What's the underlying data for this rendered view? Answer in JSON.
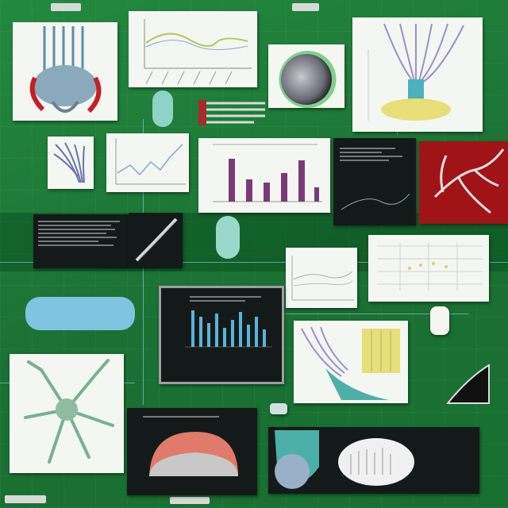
{
  "colors": {
    "board": "#1e7a3a",
    "panel_white": "#f4f6f2",
    "panel_dark": "#141a1a",
    "accent_red": "#c81e24",
    "accent_teal": "#4db0c0",
    "accent_purple": "#7a3a78",
    "accent_yellow": "#e6df7a"
  },
  "panels": [
    {
      "name": "anatomy-illustration",
      "icon": "organ-icon"
    },
    {
      "name": "line-chart-top",
      "icon": "line-chart-icon"
    },
    {
      "name": "sphere-specimen",
      "icon": "sphere-icon"
    },
    {
      "name": "tree-diagram",
      "icon": "tree-icon"
    },
    {
      "name": "coral-sketch",
      "icon": "coral-icon"
    },
    {
      "name": "small-line-chart",
      "icon": "line-chart-icon"
    },
    {
      "name": "bar-chart-purple",
      "icon": "bar-chart-icon"
    },
    {
      "name": "dark-data-screen",
      "icon": "screen-icon"
    },
    {
      "name": "red-branch-panel",
      "icon": "branch-icon"
    },
    {
      "name": "dark-text-panel",
      "icon": "document-icon"
    },
    {
      "name": "scatter-chart",
      "icon": "scatter-icon"
    },
    {
      "name": "grid-chart",
      "icon": "grid-icon"
    },
    {
      "name": "monitor-bar-chart",
      "icon": "monitor-icon"
    },
    {
      "name": "fibre-illustration",
      "icon": "fibre-icon"
    },
    {
      "name": "neuron-illustration",
      "icon": "neuron-icon"
    },
    {
      "name": "dark-dome-panel",
      "icon": "dome-icon"
    },
    {
      "name": "bottom-dark-panel",
      "icon": "document-icon"
    }
  ]
}
